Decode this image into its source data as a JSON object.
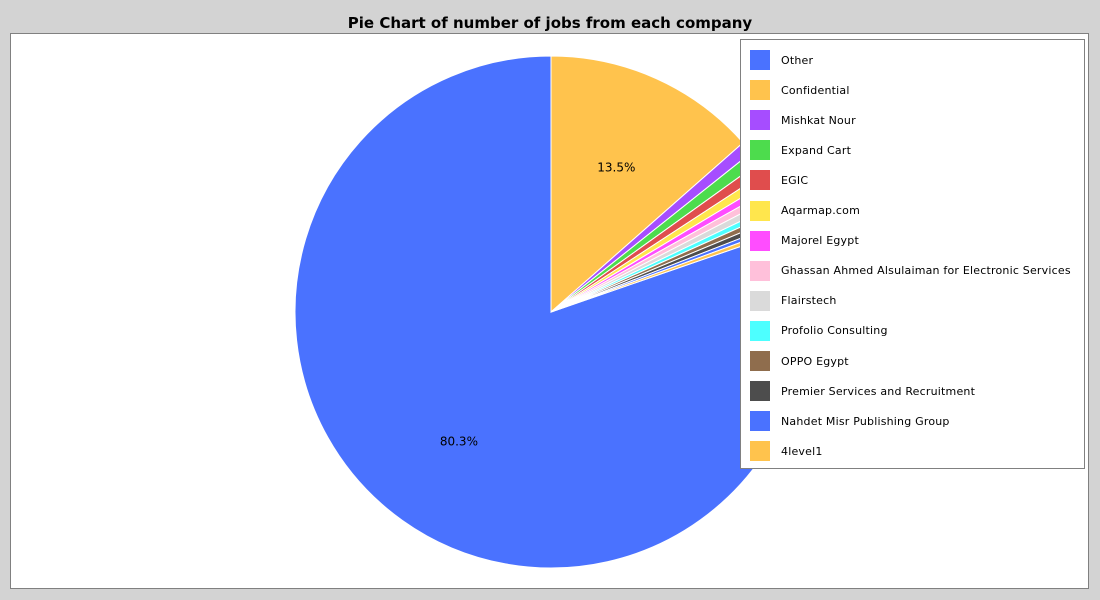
{
  "chart_data": {
    "type": "pie",
    "title": "Pie Chart of number of jobs from each company",
    "legend_position": "right",
    "slices": [
      {
        "name": "Other",
        "value": 80.3,
        "color": "#4a72ff",
        "label": "80.3%"
      },
      {
        "name": "Confidential",
        "value": 13.5,
        "color": "#ffc34d",
        "label": "13.5%"
      },
      {
        "name": "Mishkat Nour",
        "value": 0.8,
        "color": "#a64dff",
        "label": ""
      },
      {
        "name": "Expand Cart",
        "value": 0.8,
        "color": "#4ddc4d",
        "label": ""
      },
      {
        "name": "EGIC",
        "value": 0.7,
        "color": "#e04d4d",
        "label": ""
      },
      {
        "name": "Aqarmap.com",
        "value": 0.6,
        "color": "#ffe64d",
        "label": ""
      },
      {
        "name": "Majorel Egypt",
        "value": 0.5,
        "color": "#ff4dff",
        "label": ""
      },
      {
        "name": "Ghassan Ahmed Alsulaiman for Electronic Services",
        "value": 0.5,
        "color": "#ffc0da",
        "label": ""
      },
      {
        "name": "Flairstech",
        "value": 0.5,
        "color": "#dadada",
        "label": ""
      },
      {
        "name": "Profolio Consulting",
        "value": 0.4,
        "color": "#4dffff",
        "label": ""
      },
      {
        "name": "OPPO Egypt",
        "value": 0.4,
        "color": "#8f6d4d",
        "label": ""
      },
      {
        "name": "Premier Services and Recruitment",
        "value": 0.4,
        "color": "#4d4d4d",
        "label": ""
      },
      {
        "name": "Nahdet Misr Publishing Group",
        "value": 0.3,
        "color": "#4a72ff",
        "label": ""
      },
      {
        "name": "4level1",
        "value": 0.3,
        "color": "#ffc34d",
        "label": ""
      }
    ]
  }
}
